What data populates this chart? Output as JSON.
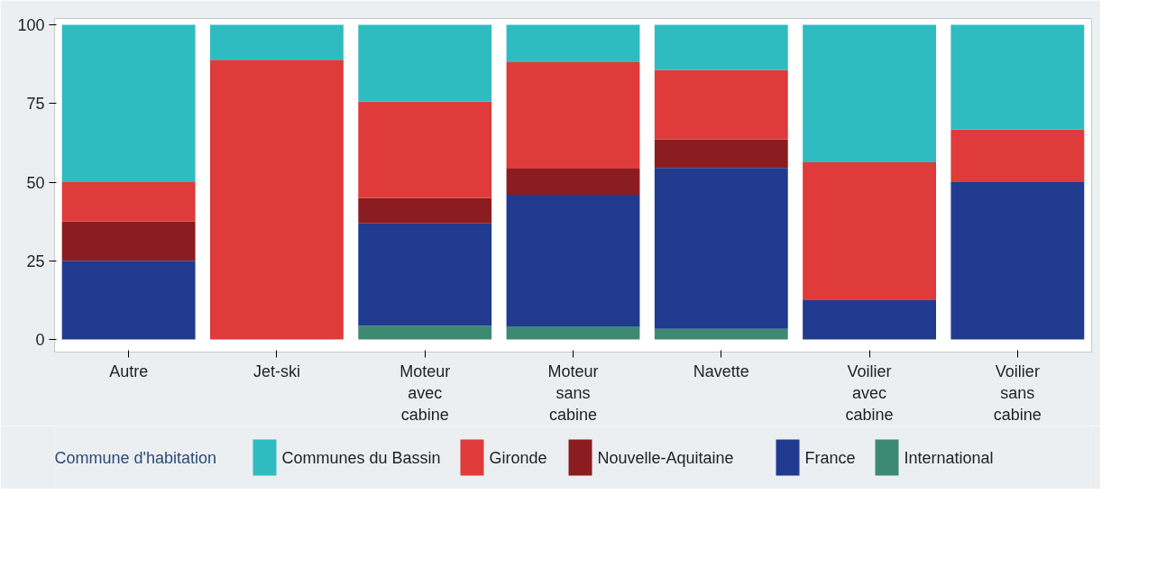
{
  "chart_data": {
    "type": "bar",
    "stacked": true,
    "categories": [
      "Autre",
      "Jet-ski",
      "Moteur avec cabine",
      "Moteur sans cabine",
      "Navette",
      "Voilier avec cabine",
      "Voilier sans cabine"
    ],
    "series": [
      {
        "name": "International",
        "color": "#3d8a72",
        "values": [
          0,
          0,
          4.4,
          4.2,
          3.4,
          0,
          0
        ]
      },
      {
        "name": "France",
        "color": "#203a8f",
        "values": [
          25,
          0,
          32.5,
          41.8,
          51.1,
          12.5,
          50
        ]
      },
      {
        "name": "Nouvelle-Aquitaine",
        "color": "#8b1c1f",
        "values": [
          12.5,
          0,
          8,
          8.3,
          9.1,
          0,
          0
        ]
      },
      {
        "name": "Gironde",
        "color": "#de3b3a",
        "values": [
          12.5,
          88.9,
          30.7,
          33.8,
          22.1,
          43.8,
          16.7
        ]
      },
      {
        "name": "Communes du Bassin",
        "color": "#2fbcc0",
        "values": [
          50,
          11.1,
          24.4,
          11.9,
          14.3,
          43.7,
          33.3
        ]
      }
    ],
    "legend_title": "Commune d'habitation",
    "legend": "bottom",
    "grid": false,
    "ylim": [
      -4,
      102
    ],
    "yticks": [
      0,
      25,
      50,
      75,
      100
    ]
  }
}
